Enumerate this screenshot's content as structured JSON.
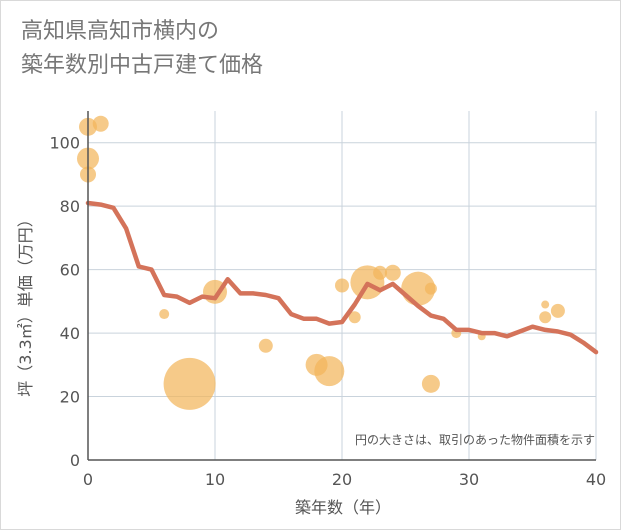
{
  "title_line1": "高知県高知市横内の",
  "title_line2": "築年数別中古戸建て価格",
  "note": "円の大きさは、取引のあった物件面積を示す",
  "colors": {
    "bubble": "#f2b65c",
    "line": "#d4735a",
    "grid": "#c9d3dc",
    "axis": "#555555"
  },
  "chart_data": {
    "type": "scatter",
    "title": "高知県高知市横内の築年数別中古戸建て価格",
    "xlabel": "築年数（年）",
    "ylabel": "坪（3.3㎡）単価（万円）",
    "xlim": [
      0,
      40
    ],
    "ylim": [
      0,
      110
    ],
    "xticks": [
      "0",
      "10",
      "20",
      "30",
      "40"
    ],
    "yticks": [
      "0",
      "20",
      "40",
      "60",
      "80",
      "100"
    ],
    "bubbles": [
      {
        "x": 0,
        "y": 105,
        "size": 9
      },
      {
        "x": 1,
        "y": 106,
        "size": 8
      },
      {
        "x": 0,
        "y": 95,
        "size": 11
      },
      {
        "x": 0,
        "y": 90,
        "size": 8
      },
      {
        "x": 6,
        "y": 46,
        "size": 5
      },
      {
        "x": 8,
        "y": 24,
        "size": 26
      },
      {
        "x": 10,
        "y": 53,
        "size": 12
      },
      {
        "x": 14,
        "y": 36,
        "size": 7
      },
      {
        "x": 18,
        "y": 30,
        "size": 11
      },
      {
        "x": 19,
        "y": 28,
        "size": 15
      },
      {
        "x": 20,
        "y": 55,
        "size": 7
      },
      {
        "x": 21,
        "y": 45,
        "size": 6
      },
      {
        "x": 22,
        "y": 56,
        "size": 17
      },
      {
        "x": 23,
        "y": 59,
        "size": 7
      },
      {
        "x": 24,
        "y": 59,
        "size": 8
      },
      {
        "x": 26,
        "y": 54,
        "size": 17
      },
      {
        "x": 27,
        "y": 54,
        "size": 6
      },
      {
        "x": 27,
        "y": 24,
        "size": 9
      },
      {
        "x": 29,
        "y": 40,
        "size": 5
      },
      {
        "x": 31,
        "y": 39,
        "size": 4
      },
      {
        "x": 36,
        "y": 49,
        "size": 4
      },
      {
        "x": 36,
        "y": 45,
        "size": 6
      },
      {
        "x": 37,
        "y": 47,
        "size": 7
      }
    ],
    "trend_line": {
      "x": [
        0,
        1,
        2,
        3,
        4,
        5,
        6,
        7,
        8,
        9,
        10,
        11,
        12,
        13,
        14,
        15,
        16,
        17,
        18,
        19,
        20,
        21,
        22,
        23,
        24,
        25,
        26,
        27,
        28,
        29,
        30,
        31,
        32,
        33,
        34,
        35,
        36,
        37,
        38,
        39,
        40
      ],
      "y": [
        81,
        80.5,
        79.5,
        73,
        61,
        60,
        52,
        51.5,
        49.5,
        51.5,
        51,
        57,
        52.5,
        52.5,
        52,
        51,
        46,
        44.5,
        44.5,
        43,
        43.5,
        49,
        55.5,
        53.5,
        55.5,
        52,
        48.5,
        45.5,
        44.5,
        41,
        41,
        40,
        40,
        39,
        40.5,
        42,
        41,
        40.5,
        39.5,
        37,
        34
      ]
    }
  }
}
